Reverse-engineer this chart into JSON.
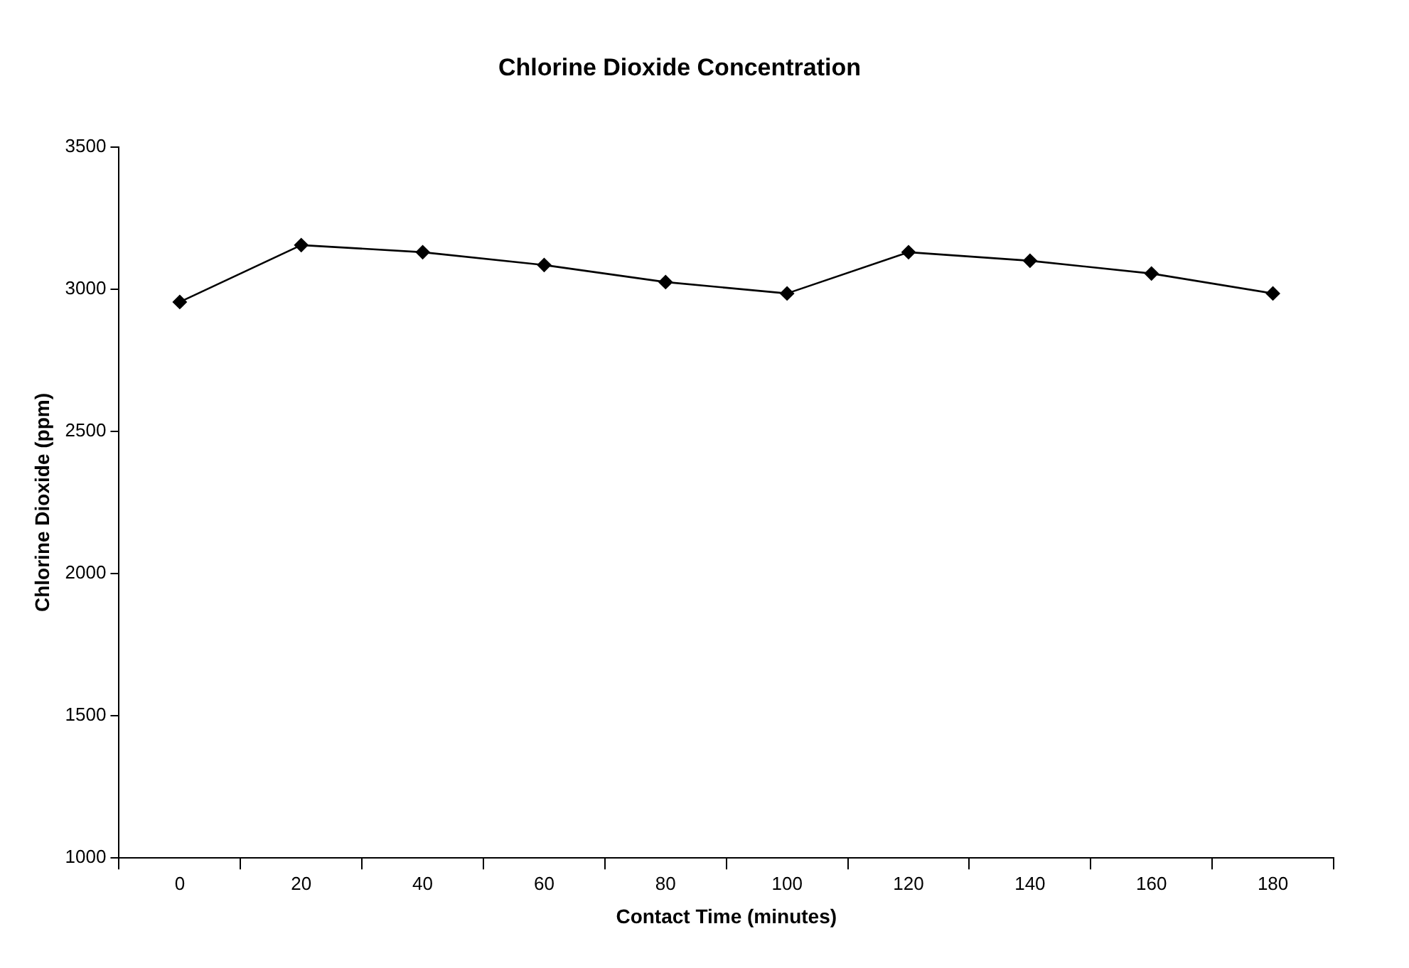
{
  "chart_data": {
    "type": "line",
    "title": "Chlorine Dioxide Concentration",
    "xlabel": "Contact Time (minutes)",
    "ylabel": "Chlorine Dioxide (ppm)",
    "categories": [
      "0",
      "20",
      "40",
      "60",
      "80",
      "100",
      "120",
      "140",
      "160",
      "180"
    ],
    "series": [
      {
        "color": "#000000",
        "values": [
          2955,
          3155,
          3130,
          3085,
          3025,
          2985,
          3130,
          3100,
          3055,
          2985
        ]
      }
    ],
    "ylim": [
      1000,
      3500
    ],
    "yticks": [
      1000,
      1500,
      2000,
      2500,
      3000,
      3500
    ],
    "grid": false,
    "legend": false,
    "marker": "diamond",
    "line_style": "solid"
  }
}
